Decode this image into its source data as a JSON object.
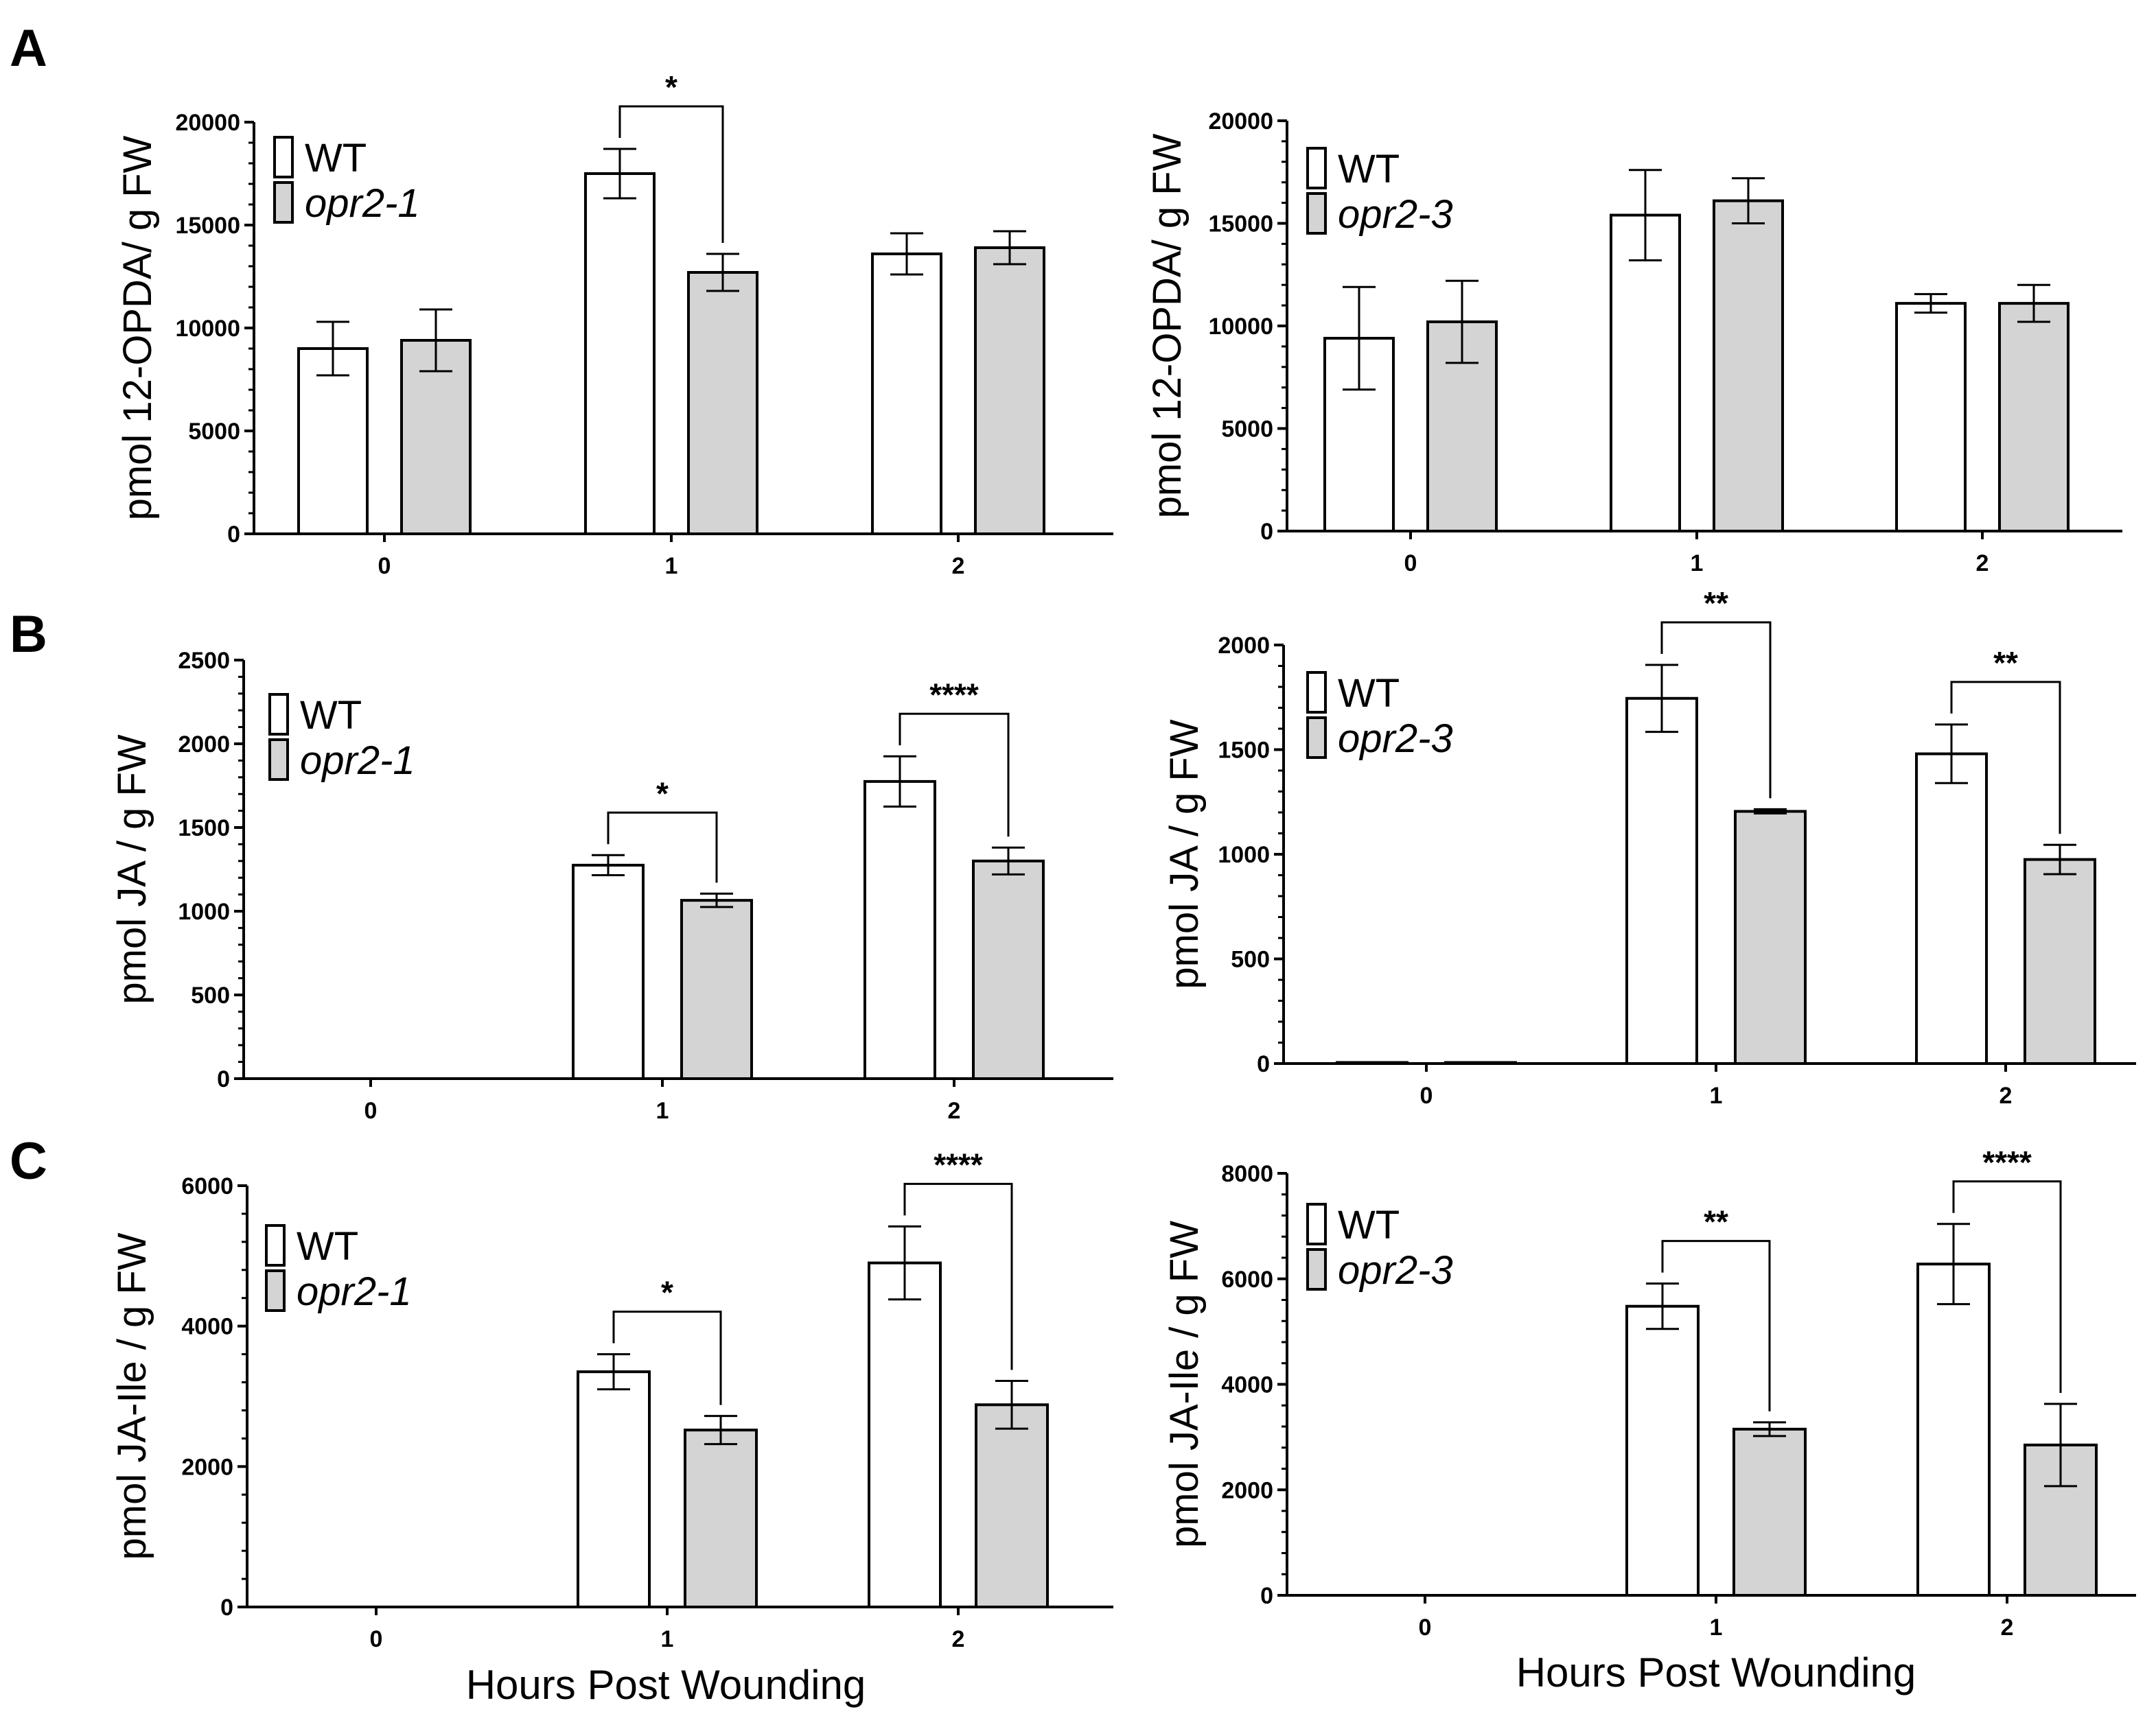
{
  "colors": {
    "WT": "#ffffff",
    "mutant": "#d4d4d4",
    "stroke": "#000000"
  },
  "panel_letters": [
    "A",
    "B",
    "C"
  ],
  "xlabel": "Hours Post Wounding",
  "chart_data": [
    {
      "type": "bar",
      "panel": "A",
      "ylabel": "pmol 12-OPDA/ g FW",
      "ylim": [
        0,
        20000
      ],
      "yticks": [
        "0",
        "5000",
        "10000",
        "15000",
        "20000"
      ],
      "categories": [
        "0",
        "1",
        "2"
      ],
      "series": [
        {
          "name": "WT",
          "values": [
            9000,
            17500,
            13600
          ],
          "errors": [
            1300,
            1200,
            1000
          ]
        },
        {
          "name": "opr2-1",
          "values": [
            9400,
            12700,
            13900
          ],
          "errors": [
            1500,
            900,
            800
          ]
        }
      ],
      "significance": [
        {
          "category": "1",
          "label": "*"
        }
      ]
    },
    {
      "type": "bar",
      "panel": "A",
      "ylabel": "pmol 12-OPDA/ g FW",
      "ylim": [
        0,
        20000
      ],
      "yticks": [
        "0",
        "5000",
        "10000",
        "15000",
        "20000"
      ],
      "categories": [
        "0",
        "1",
        "2"
      ],
      "series": [
        {
          "name": "WT",
          "values": [
            9400,
            15400,
            11100
          ],
          "errors": [
            2500,
            2200,
            450
          ]
        },
        {
          "name": "opr2-3",
          "values": [
            10200,
            16100,
            11100
          ],
          "errors": [
            2000,
            1100,
            900
          ]
        }
      ],
      "significance": []
    },
    {
      "type": "bar",
      "panel": "B",
      "ylabel": "pmol JA / g FW",
      "ylim": [
        0,
        2500
      ],
      "yticks": [
        "0",
        "500",
        "1000",
        "1500",
        "2000",
        "2500"
      ],
      "categories": [
        "0",
        "1",
        "2"
      ],
      "series": [
        {
          "name": "WT",
          "values": [
            0,
            1275,
            1775
          ],
          "errors": [
            0,
            60,
            150
          ]
        },
        {
          "name": "opr2-1",
          "values": [
            0,
            1065,
            1300
          ],
          "errors": [
            0,
            40,
            80
          ]
        }
      ],
      "significance": [
        {
          "category": "1",
          "label": "*"
        },
        {
          "category": "2",
          "label": "****"
        }
      ]
    },
    {
      "type": "bar",
      "panel": "B",
      "ylabel": "pmol JA / g FW",
      "ylim": [
        0,
        2000
      ],
      "yticks": [
        "0",
        "500",
        "1000",
        "1500",
        "2000"
      ],
      "categories": [
        "0",
        "1",
        "2"
      ],
      "series": [
        {
          "name": "WT",
          "values": [
            5,
            1745,
            1480
          ],
          "errors": [
            0,
            160,
            140
          ]
        },
        {
          "name": "opr2-3",
          "values": [
            5,
            1205,
            975
          ],
          "errors": [
            0,
            10,
            70
          ]
        }
      ],
      "significance": [
        {
          "category": "1",
          "label": "**"
        },
        {
          "category": "2",
          "label": "**"
        }
      ]
    },
    {
      "type": "bar",
      "panel": "C",
      "ylabel": "pmol JA-Ile / g FW",
      "ylim": [
        0,
        6000
      ],
      "yticks": [
        "0",
        "2000",
        "4000",
        "6000"
      ],
      "categories": [
        "0",
        "1",
        "2"
      ],
      "series": [
        {
          "name": "WT",
          "values": [
            0,
            3350,
            4900
          ],
          "errors": [
            0,
            250,
            520
          ]
        },
        {
          "name": "opr2-1",
          "values": [
            0,
            2520,
            2880
          ],
          "errors": [
            0,
            200,
            340
          ]
        }
      ],
      "significance": [
        {
          "category": "1",
          "label": "*"
        },
        {
          "category": "2",
          "label": "****"
        }
      ]
    },
    {
      "type": "bar",
      "panel": "C",
      "ylabel": "pmol JA-Ile / g FW",
      "ylim": [
        0,
        8000
      ],
      "yticks": [
        "0",
        "2000",
        "4000",
        "6000",
        "8000"
      ],
      "categories": [
        "0",
        "1",
        "2"
      ],
      "series": [
        {
          "name": "WT",
          "values": [
            0,
            5480,
            6280
          ],
          "errors": [
            0,
            430,
            760
          ]
        },
        {
          "name": "opr2-3",
          "values": [
            0,
            3150,
            2850
          ],
          "errors": [
            0,
            130,
            780
          ]
        }
      ],
      "significance": [
        {
          "category": "1",
          "label": "**"
        },
        {
          "category": "2",
          "label": "****"
        }
      ]
    }
  ]
}
